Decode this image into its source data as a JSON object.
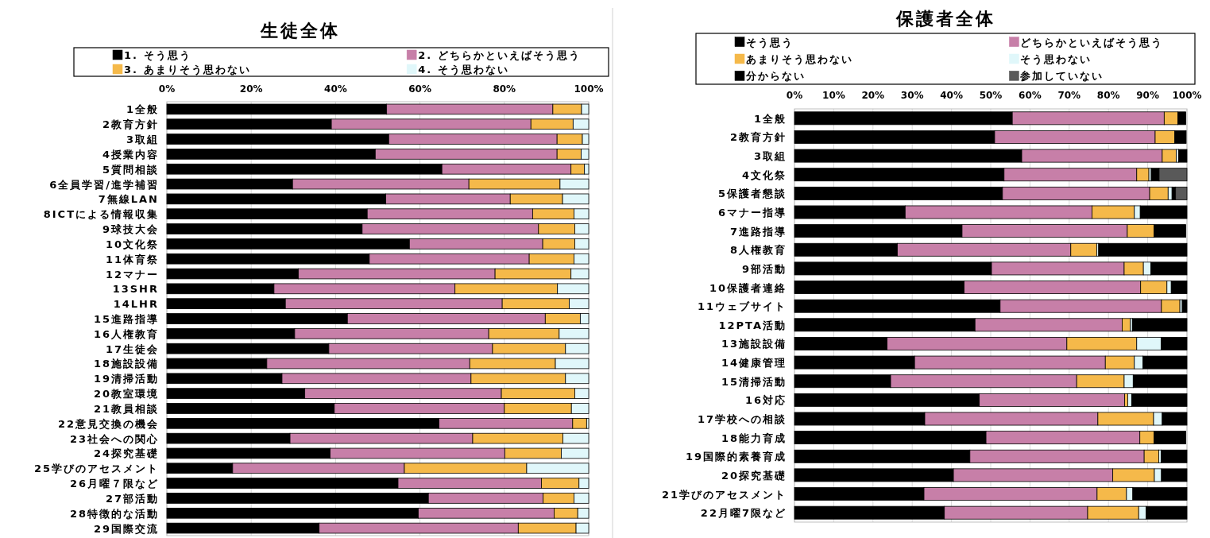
{
  "chart_data": [
    {
      "type": "bar",
      "orientation": "horizontal",
      "stacked": true,
      "title": "生徒全体",
      "legend": "top",
      "grid": "x",
      "categories": [
        "1全般",
        "2教育方針",
        "3取組",
        "4授業内容",
        "5質問相談",
        "6全員学習/進学補習",
        "7無線LAN",
        "8ICTによる情報収集",
        "9球技大会",
        "10文化祭",
        "11体育祭",
        "12マナー",
        "13SHR",
        "14LHR",
        "15進路指導",
        "16人権教育",
        "17生徒会",
        "18施設設備",
        "19清掃活動",
        "20教室環境",
        "21教員相談",
        "22意見交換の機会",
        "23社会への関心",
        "24探究基礎",
        "25学びのアセスメント",
        "26月曜７限など",
        "27部活動",
        "28特徴的な活動",
        "29国際交流"
      ],
      "xlim": [
        0,
        100
      ],
      "xticks": [
        {
          "value": 0,
          "label": "0%"
        },
        {
          "value": 20,
          "label": "20%"
        },
        {
          "value": 40,
          "label": "40%"
        },
        {
          "value": 60,
          "label": "60%"
        },
        {
          "value": 80,
          "label": "80%"
        },
        {
          "value": 100,
          "label": "100%"
        }
      ],
      "series": [
        {
          "name": "1. そう思う",
          "color": "#000000",
          "values": [
            52.1,
            39.0,
            52.6,
            49.4,
            65.2,
            29.8,
            51.9,
            47.5,
            46.3,
            57.5,
            48.0,
            31.2,
            25.4,
            28.1,
            42.8,
            30.3,
            38.4,
            23.7,
            27.3,
            32.7,
            39.7,
            64.5,
            29.2,
            38.7,
            15.6,
            54.8,
            62.0,
            59.6,
            36.1
          ]
        },
        {
          "name": "2. どちらかといえばそう思う",
          "color": "#c77fa8",
          "values": [
            39.4,
            47.3,
            39.9,
            43.1,
            30.6,
            41.8,
            29.5,
            39.2,
            41.8,
            31.6,
            37.9,
            46.6,
            42.9,
            51.4,
            46.9,
            46.0,
            38.8,
            48.1,
            44.8,
            46.6,
            40.3,
            31.7,
            43.3,
            41.4,
            40.7,
            34.0,
            27.2,
            32.2,
            47.2
          ]
        },
        {
          "name": "3. あまりそう思わない",
          "color": "#f5b94a",
          "values": [
            6.8,
            10.0,
            6.0,
            5.7,
            3.2,
            21.6,
            12.4,
            9.8,
            8.6,
            7.6,
            10.6,
            18.0,
            24.3,
            15.9,
            8.3,
            16.7,
            17.3,
            20.3,
            22.4,
            17.4,
            15.9,
            3.3,
            21.4,
            13.4,
            29.0,
            8.9,
            7.3,
            5.6,
            13.7
          ]
        },
        {
          "name": "4. そう思わない",
          "color": "#e0f7fa",
          "values": [
            1.7,
            3.7,
            1.5,
            1.8,
            1.0,
            6.8,
            6.2,
            3.5,
            3.3,
            3.3,
            3.5,
            4.2,
            7.4,
            4.6,
            2.0,
            7.0,
            5.5,
            7.9,
            5.5,
            3.3,
            4.1,
            0.5,
            6.1,
            6.5,
            14.7,
            2.3,
            3.5,
            2.6,
            3.0
          ]
        }
      ]
    },
    {
      "type": "bar",
      "orientation": "horizontal",
      "stacked": true,
      "title": "保護者全体",
      "legend": "top",
      "grid": "x",
      "categories": [
        "1全般",
        "2教育方針",
        "3取組",
        "4文化祭",
        "5保護者懇談",
        "6マナー指導",
        "7進路指導",
        "8人権教育",
        "9部活動",
        "10保護者連絡",
        "11ウェブサイト",
        "12PTA活動",
        "13施設設備",
        "14健康管理",
        "15清掃活動",
        "16対応",
        "17学校への相談",
        "18能力育成",
        "19国際的素養育成",
        "20探究基礎",
        "21学びのアセスメント",
        "22月曜7限など"
      ],
      "xlim": [
        0,
        100
      ],
      "xticks": [
        {
          "value": 0,
          "label": "0%"
        },
        {
          "value": 10,
          "label": "10%"
        },
        {
          "value": 20,
          "label": "20%"
        },
        {
          "value": 30,
          "label": "30%"
        },
        {
          "value": 40,
          "label": "40%"
        },
        {
          "value": 50,
          "label": "50%"
        },
        {
          "value": 60,
          "label": "60%"
        },
        {
          "value": 70,
          "label": "70%"
        },
        {
          "value": 80,
          "label": "80%"
        },
        {
          "value": 90,
          "label": "90%"
        },
        {
          "value": 100,
          "label": "100%"
        }
      ],
      "series": [
        {
          "name": "そう思う",
          "color": "#000000",
          "values": [
            55.5,
            51.0,
            57.9,
            53.4,
            53.0,
            28.2,
            42.7,
            26.2,
            50.2,
            43.2,
            52.4,
            46.0,
            23.6,
            30.6,
            24.5,
            47.1,
            33.2,
            48.8,
            44.7,
            40.5,
            33.0,
            38.2
          ]
        },
        {
          "name": "どちらかといえばそう思う",
          "color": "#c77fa8",
          "values": [
            38.7,
            40.9,
            35.8,
            33.8,
            37.5,
            47.6,
            42.1,
            44.2,
            33.8,
            45.0,
            41.1,
            37.5,
            45.8,
            48.6,
            47.4,
            37.0,
            44.1,
            39.2,
            44.4,
            40.6,
            44.1,
            36.5
          ]
        },
        {
          "name": "あまりそう思わない",
          "color": "#f5b94a",
          "values": [
            3.5,
            5.0,
            3.6,
            3.1,
            4.7,
            10.8,
            6.8,
            6.6,
            4.9,
            6.7,
            4.7,
            2.1,
            17.8,
            7.4,
            12.1,
            0.8,
            14.2,
            3.6,
            3.7,
            10.6,
            7.5,
            13.0
          ]
        },
        {
          "name": "そう思わない",
          "color": "#e0f7fa",
          "values": [
            null,
            null,
            0.6,
            0.6,
            1.0,
            1.5,
            null,
            0.5,
            1.9,
            1.1,
            0.6,
            0.5,
            6.2,
            2.2,
            2.3,
            1.0,
            2.2,
            null,
            0.6,
            1.8,
            1.6,
            1.9
          ]
        },
        {
          "name": "分からない",
          "color": "#000000",
          "values": [
            2.0,
            2.9,
            2.1,
            2.0,
            0.9,
            11.9,
            8.1,
            22.5,
            9.2,
            4.0,
            1.2,
            13.9,
            6.6,
            11.2,
            13.7,
            14.1,
            6.3,
            8.1,
            6.6,
            6.5,
            13.8,
            10.4
          ]
        },
        {
          "name": "参加していない",
          "color": "#595959",
          "values": [
            0,
            0,
            0,
            7.1,
            2.9,
            0,
            0,
            0,
            0,
            0,
            0,
            0,
            0,
            0,
            0,
            0,
            0,
            0,
            0,
            0,
            0,
            0
          ]
        }
      ]
    }
  ]
}
